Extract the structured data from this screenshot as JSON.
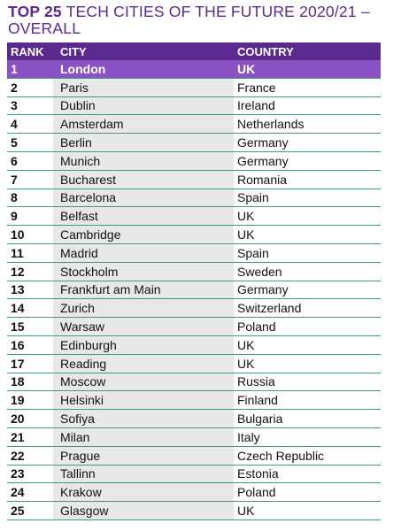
{
  "header": {
    "bold": "TOP 25",
    "title": "TECH CITIES OF THE FUTURE 2020/21 – OVERALL"
  },
  "table": {
    "columns": [
      "RANK",
      "CITY",
      "COUNTRY"
    ],
    "rows": [
      [
        1,
        "London",
        "UK"
      ],
      [
        2,
        "Paris",
        "France"
      ],
      [
        3,
        "Dublin",
        "Ireland"
      ],
      [
        4,
        "Amsterdam",
        "Netherlands"
      ],
      [
        5,
        "Berlin",
        "Germany"
      ],
      [
        6,
        "Munich",
        "Germany"
      ],
      [
        7,
        "Bucharest",
        "Romania"
      ],
      [
        8,
        "Barcelona",
        "Spain"
      ],
      [
        9,
        "Belfast",
        "UK"
      ],
      [
        10,
        "Cambridge",
        "UK"
      ],
      [
        11,
        "Madrid",
        "Spain"
      ],
      [
        12,
        "Stockholm",
        "Sweden"
      ],
      [
        13,
        "Frankfurt am Main",
        "Germany"
      ],
      [
        14,
        "Zurich",
        "Switzerland"
      ],
      [
        15,
        "Warsaw",
        "Poland"
      ],
      [
        16,
        "Edinburgh",
        "UK"
      ],
      [
        17,
        "Reading",
        "UK"
      ],
      [
        18,
        "Moscow",
        "Russia"
      ],
      [
        19,
        "Helsinki",
        "Finland"
      ],
      [
        20,
        "Sofiya",
        "Bulgaria"
      ],
      [
        21,
        "Milan",
        "Italy"
      ],
      [
        22,
        "Prague",
        "Czech Republic"
      ],
      [
        23,
        "Tallinn",
        "Estonia"
      ],
      [
        24,
        "Krakow",
        "Poland"
      ],
      [
        25,
        "Glasgow",
        "UK"
      ]
    ]
  }
}
